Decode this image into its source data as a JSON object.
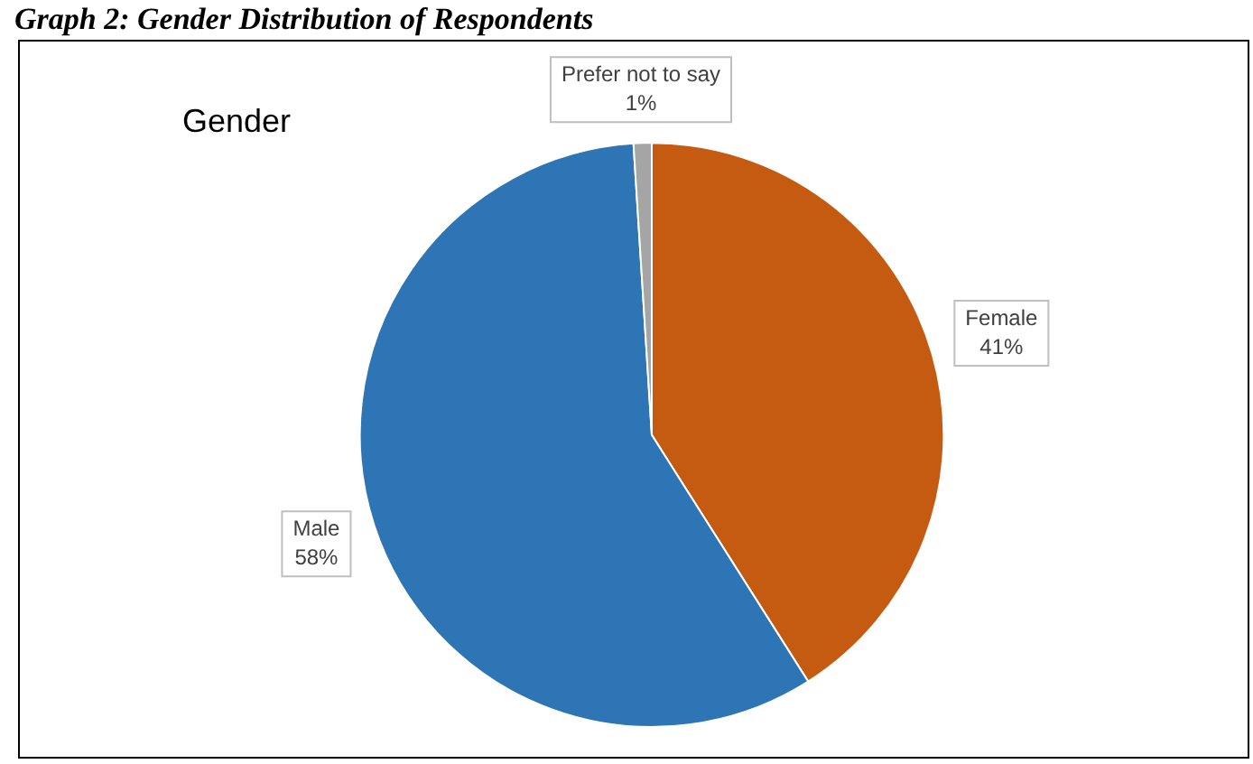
{
  "chart_data": {
    "type": "pie",
    "title": "Gender",
    "annotations": [
      "Graph 2: Gender Distribution of Respondents"
    ],
    "categories": [
      "Female",
      "Male",
      "Prefer not to say"
    ],
    "values": [
      41,
      58,
      1
    ],
    "colors": [
      "#c55a11",
      "#2e75b6",
      "#a5a5a5"
    ],
    "value_labels": [
      "41%",
      "58%",
      "1%"
    ],
    "legend": false
  }
}
